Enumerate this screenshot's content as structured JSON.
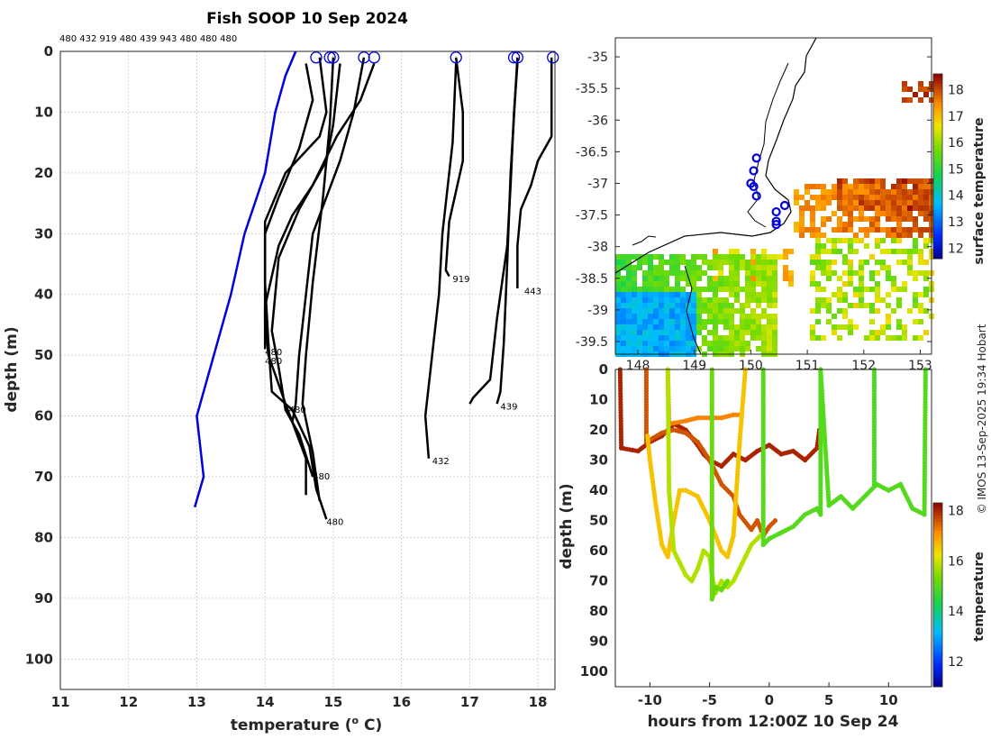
{
  "title": "Fish SOOP 10 Sep 2024",
  "credit": "© IMOS 13-Sep-2025 19:34 Hobart",
  "chart_data": [
    {
      "type": "line",
      "name": "temperature-depth profiles",
      "header_ids": "480 432 919 480 439 943 480 480 480",
      "xlabel": "temperature (",
      "xlabel_unit": "o",
      "xlabel_end": " C)",
      "ylabel": "depth (m)",
      "xlim": [
        11,
        18.25
      ],
      "ylim": [
        0,
        105
      ],
      "xticks": [
        "11",
        "12",
        "13",
        "14",
        "15",
        "16",
        "17",
        "18"
      ],
      "yticks": [
        "0",
        "10",
        "20",
        "30",
        "40",
        "50",
        "60",
        "70",
        "80",
        "90",
        "100"
      ],
      "reference_profile": {
        "name": "climatology",
        "color": "#0000dd",
        "points": [
          [
            14.45,
            0
          ],
          [
            14.3,
            4
          ],
          [
            14.15,
            10
          ],
          [
            14.0,
            20
          ],
          [
            13.7,
            30
          ],
          [
            13.5,
            40
          ],
          [
            13.25,
            50
          ],
          [
            13.0,
            60
          ],
          [
            13.1,
            70
          ],
          [
            12.97,
            75
          ]
        ]
      },
      "profiles": [
        {
          "id": "480",
          "points": [
            [
              14.8,
              1
            ],
            [
              14.9,
              10
            ],
            [
              14.8,
              14
            ],
            [
              14.3,
              20
            ],
            [
              14.0,
              28
            ],
            [
              14.0,
              38
            ],
            [
              14.05,
              48
            ],
            [
              14.1,
              56
            ],
            [
              14.4,
              59
            ],
            [
              14.65,
              65
            ],
            [
              14.75,
              72
            ],
            [
              14.9,
              77
            ]
          ]
        },
        {
          "id": "480",
          "points": [
            [
              14.6,
              2
            ],
            [
              14.7,
              8
            ],
            [
              14.5,
              16
            ],
            [
              14.2,
              24
            ],
            [
              14.0,
              30
            ],
            [
              14.0,
              44
            ],
            [
              14.05,
              50
            ],
            [
              14.3,
              58
            ],
            [
              14.6,
              67
            ],
            [
              14.6,
              73
            ]
          ]
        },
        {
          "id": "480",
          "points": [
            [
              15.1,
              2
            ],
            [
              15.0,
              12
            ],
            [
              14.9,
              18
            ],
            [
              14.5,
              26
            ],
            [
              14.2,
              34
            ],
            [
              14.1,
              46
            ],
            [
              14.2,
              52
            ],
            [
              14.3,
              59
            ],
            [
              14.5,
              63
            ],
            [
              14.7,
              70
            ]
          ]
        },
        {
          "id": "480",
          "points": [
            [
              15.45,
              1
            ],
            [
              15.3,
              10
            ],
            [
              15.1,
              18
            ],
            [
              14.7,
              30
            ],
            [
              14.6,
              40
            ],
            [
              14.5,
              50
            ],
            [
              14.45,
              58
            ],
            [
              14.4,
              61
            ]
          ]
        },
        {
          "id": "480",
          "points": [
            [
              15.6,
              2
            ],
            [
              15.4,
              8
            ],
            [
              15.05,
              14
            ],
            [
              14.7,
              22
            ],
            [
              14.4,
              27
            ],
            [
              14.2,
              32
            ],
            [
              14.0,
              42
            ],
            [
              14.0,
              49
            ]
          ]
        },
        {
          "id": "480",
          "points": [
            [
              15.0,
              1
            ],
            [
              14.95,
              12
            ],
            [
              14.85,
              24
            ],
            [
              14.7,
              38
            ],
            [
              14.6,
              50
            ],
            [
              14.55,
              58
            ],
            [
              14.7,
              66
            ],
            [
              14.8,
              74
            ]
          ]
        },
        {
          "id": "919",
          "points": [
            [
              16.8,
              1
            ],
            [
              16.9,
              10
            ],
            [
              16.9,
              18
            ],
            [
              16.7,
              28
            ],
            [
              16.65,
              36
            ],
            [
              16.7,
              37
            ]
          ]
        },
        {
          "id": "432",
          "points": [
            [
              16.8,
              2
            ],
            [
              16.75,
              15
            ],
            [
              16.6,
              30
            ],
            [
              16.55,
              40
            ],
            [
              16.45,
              50
            ],
            [
              16.35,
              60
            ],
            [
              16.4,
              67
            ]
          ]
        },
        {
          "id": "943",
          "points": [
            [
              17.7,
              2
            ],
            [
              17.65,
              10
            ],
            [
              17.6,
              22
            ],
            [
              17.55,
              32
            ],
            [
              17.4,
              44
            ],
            [
              17.3,
              54
            ],
            [
              17.05,
              57
            ],
            [
              17.0,
              58
            ]
          ]
        },
        {
          "id": "439",
          "points": [
            [
              17.7,
              1
            ],
            [
              17.6,
              20
            ],
            [
              17.55,
              35
            ],
            [
              17.5,
              48
            ],
            [
              17.45,
              56
            ],
            [
              17.4,
              58
            ]
          ]
        },
        {
          "id": "443",
          "points": [
            [
              18.2,
              1
            ],
            [
              18.2,
              14
            ],
            [
              18.0,
              18
            ],
            [
              17.9,
              22
            ],
            [
              17.75,
              26
            ],
            [
              17.7,
              32
            ],
            [
              17.7,
              39
            ]
          ]
        }
      ],
      "profile_labels": [
        {
          "text": "480",
          "t": 14.0,
          "d": 49.5
        },
        {
          "text": "480",
          "t": 14.0,
          "d": 51
        },
        {
          "text": "480",
          "t": 14.35,
          "d": 59
        },
        {
          "text": "480",
          "t": 14.7,
          "d": 70
        },
        {
          "text": "480",
          "t": 14.9,
          "d": 77.5
        },
        {
          "text": "919",
          "t": 16.75,
          "d": 37.5
        },
        {
          "text": "432",
          "t": 16.45,
          "d": 67.5
        },
        {
          "text": "443",
          "t": 17.8,
          "d": 39.5
        },
        {
          "text": "439",
          "t": 17.45,
          "d": 58.5
        }
      ],
      "surface_markers": [
        14.75,
        14.95,
        15.0,
        15.45,
        15.6,
        16.8,
        17.65,
        17.7,
        18.22
      ]
    },
    {
      "type": "heatmap",
      "name": "surface temperature map",
      "xticks": [
        "148",
        "149",
        "150",
        "151",
        "152",
        "153"
      ],
      "yticks": [
        "-35",
        "-35.5",
        "-36",
        "-36.5",
        "-37",
        "-37.5",
        "-38",
        "-38.5",
        "-39",
        "-39.5"
      ],
      "xlim": [
        147.6,
        153.2
      ],
      "ylim": [
        -39.7,
        -34.7
      ],
      "colorbar_label": "surface temperature",
      "colorbar_ticks": [
        "12",
        "13",
        "14",
        "15",
        "16",
        "17",
        "18"
      ],
      "colorbar_range": [
        11.6,
        18.6
      ],
      "stations": [
        [
          150.1,
          -36.6
        ],
        [
          150.05,
          -36.8
        ],
        [
          150.0,
          -37.0
        ],
        [
          150.05,
          -37.05
        ],
        [
          150.1,
          -37.2
        ],
        [
          150.6,
          -37.35
        ],
        [
          150.45,
          -37.45
        ],
        [
          150.45,
          -37.6
        ],
        [
          150.45,
          -37.65
        ]
      ]
    },
    {
      "type": "scatter",
      "name": "depth vs time",
      "xlabel": "hours from 12:00Z 10 Sep 24",
      "ylabel": "depth (m)",
      "xticks": [
        "-10",
        "-5",
        "0",
        "5",
        "10"
      ],
      "yticks": [
        "0",
        "10",
        "20",
        "30",
        "40",
        "50",
        "60",
        "70",
        "80",
        "90",
        "100"
      ],
      "xlim": [
        -12.9,
        13.6
      ],
      "ylim": [
        0,
        105
      ],
      "colorbar_label": "temperature",
      "colorbar_ticks": [
        "12",
        "14",
        "16",
        "18"
      ],
      "colorbar_range": [
        11,
        18.3
      ],
      "series": [
        {
          "temp": 18.0,
          "points": [
            [
              -12.5,
              0
            ],
            [
              -12.4,
              26
            ],
            [
              -11,
              27
            ],
            [
              -10,
              24
            ],
            [
              -9,
              22
            ],
            [
              -8,
              18
            ],
            [
              -7,
              20
            ],
            [
              -6,
              25
            ],
            [
              -5.5,
              28
            ],
            [
              -5,
              30
            ],
            [
              -4,
              32
            ],
            [
              -3,
              28
            ],
            [
              -2,
              30
            ],
            [
              -1,
              27
            ],
            [
              0,
              25
            ],
            [
              1,
              28
            ],
            [
              2,
              27
            ],
            [
              3,
              30
            ],
            [
              4,
              26
            ],
            [
              4.2,
              20
            ]
          ]
        },
        {
          "temp": 17.6,
          "points": [
            [
              -10.3,
              0
            ],
            [
              -10.3,
              24
            ],
            [
              -9,
              21
            ],
            [
              -8,
              20
            ],
            [
              -7,
              21
            ],
            [
              -6,
              24
            ],
            [
              -5,
              30
            ],
            [
              -4,
              38
            ],
            [
              -3,
              42
            ],
            [
              -2.5,
              48
            ],
            [
              -1.5,
              53
            ],
            [
              -1,
              50
            ],
            [
              -0.5,
              55
            ],
            [
              0,
              52
            ],
            [
              0.5,
              50
            ]
          ]
        },
        {
          "temp": 17.2,
          "points": [
            [
              -8.5,
              0
            ],
            [
              -8.4,
              18
            ],
            [
              -7,
              17
            ],
            [
              -6,
              16
            ],
            [
              -5,
              16
            ],
            [
              -4,
              16
            ],
            [
              -3,
              15
            ],
            [
              -2.5,
              15
            ]
          ]
        },
        {
          "temp": 16.6,
          "points": [
            [
              -10.2,
              22
            ],
            [
              -10,
              30
            ],
            [
              -9.5,
              45
            ],
            [
              -9,
              58
            ],
            [
              -8.5,
              62
            ],
            [
              -8,
              50
            ],
            [
              -7.5,
              40
            ],
            [
              -7,
              40
            ],
            [
              -6,
              42
            ],
            [
              -5,
              50
            ],
            [
              -4.5,
              55
            ],
            [
              -4,
              60
            ],
            [
              -3.5,
              62
            ],
            [
              -3,
              55
            ],
            [
              -2.5,
              25
            ],
            [
              -2.2,
              10
            ],
            [
              -2,
              0
            ]
          ]
        },
        {
          "temp": 15.8,
          "points": [
            [
              -8.5,
              0
            ],
            [
              -8.4,
              40
            ],
            [
              -8,
              60
            ],
            [
              -7.5,
              64
            ],
            [
              -7,
              68
            ],
            [
              -6.5,
              70
            ],
            [
              -6,
              66
            ],
            [
              -5.5,
              60
            ],
            [
              -5,
              62
            ],
            [
              -4.8,
              68
            ],
            [
              -4.5,
              74
            ],
            [
              -4,
              70
            ],
            [
              -3.5,
              72
            ],
            [
              -3,
              70
            ],
            [
              -2.5,
              66
            ],
            [
              -2,
              62
            ],
            [
              -1.5,
              58
            ],
            [
              -1,
              56
            ],
            [
              -0.5,
              54
            ]
          ]
        },
        {
          "temp": 15.2,
          "points": [
            [
              -4.8,
              0
            ],
            [
              -4.8,
              40
            ],
            [
              -4.8,
              76
            ],
            [
              -4.5,
              72
            ],
            [
              -4,
              73
            ],
            [
              -3.5,
              70
            ]
          ]
        },
        {
          "temp": 15.0,
          "points": [
            [
              -0.5,
              0
            ],
            [
              -0.5,
              30
            ],
            [
              -0.5,
              58
            ],
            [
              0,
              56
            ],
            [
              1,
              54
            ],
            [
              2,
              52
            ],
            [
              3,
              48
            ],
            [
              4,
              46
            ],
            [
              4.3,
              48
            ],
            [
              4.3,
              0
            ],
            [
              5,
              45
            ],
            [
              6,
              42
            ],
            [
              7,
              46
            ],
            [
              8,
              42
            ],
            [
              9,
              38
            ],
            [
              10,
              40
            ],
            [
              11,
              38
            ],
            [
              12,
              46
            ],
            [
              13,
              48
            ],
            [
              13.1,
              0
            ]
          ]
        },
        {
          "temp": 14.9,
          "points": [
            [
              8.8,
              0
            ],
            [
              8.8,
              38
            ]
          ]
        }
      ]
    }
  ]
}
